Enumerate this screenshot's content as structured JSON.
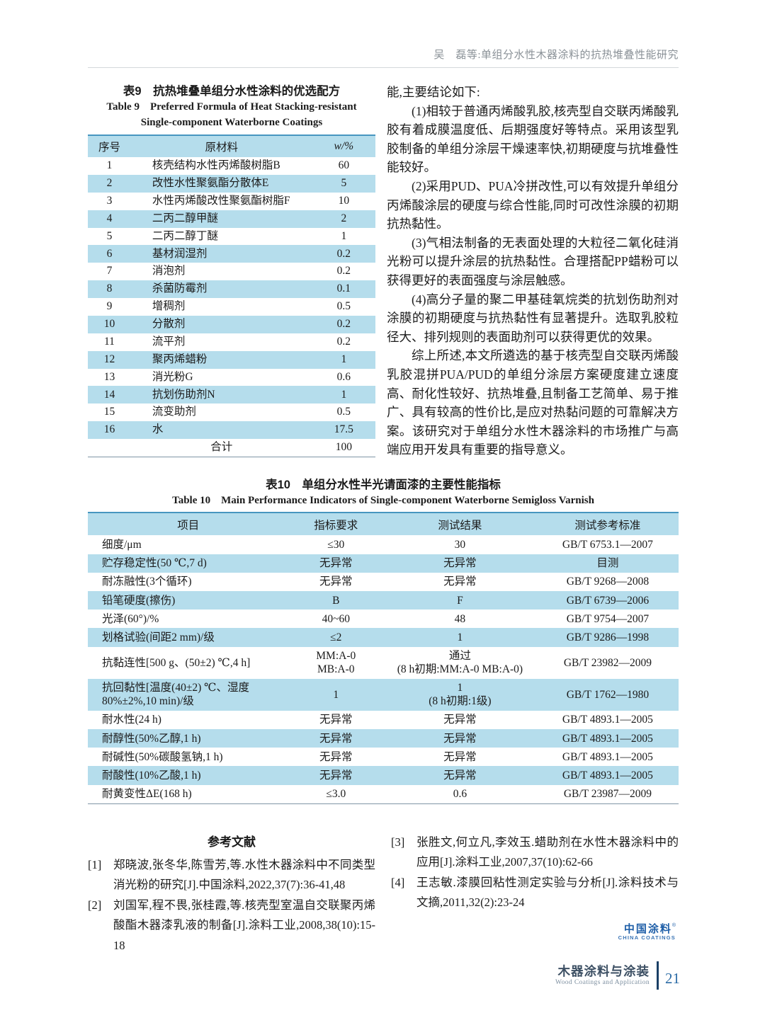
{
  "page": {
    "running_head": "吴　磊等:单组分水性木器涂料的抗热堆叠性能研究"
  },
  "table9": {
    "caption_zh": "表9　抗热堆叠单组分水性涂料的优选配方",
    "caption_en_line1": "Table 9　Preferred Formula of Heat Stacking-resistant",
    "caption_en_line2": "Single-component Waterborne Coatings",
    "columns": [
      "序号",
      "原材料",
      "w/%"
    ],
    "rows": [
      [
        "1",
        "核壳结构水性丙烯酸树脂B",
        "60"
      ],
      [
        "2",
        "改性水性聚氨酯分散体E",
        "5"
      ],
      [
        "3",
        "水性丙烯酸改性聚氨酯树脂F",
        "10"
      ],
      [
        "4",
        "二丙二醇甲醚",
        "2"
      ],
      [
        "5",
        "二丙二醇丁醚",
        "1"
      ],
      [
        "6",
        "基材润湿剂",
        "0.2"
      ],
      [
        "7",
        "消泡剂",
        "0.2"
      ],
      [
        "8",
        "杀菌防霉剂",
        "0.1"
      ],
      [
        "9",
        "增稠剂",
        "0.5"
      ],
      [
        "10",
        "分散剂",
        "0.2"
      ],
      [
        "11",
        "流平剂",
        "0.2"
      ],
      [
        "12",
        "聚丙烯蜡粉",
        "1"
      ],
      [
        "13",
        "消光粉G",
        "0.6"
      ],
      [
        "14",
        "抗划伤助剂N",
        "1"
      ],
      [
        "15",
        "流变助剂",
        "0.5"
      ],
      [
        "16",
        "水",
        "17.5"
      ],
      [
        "",
        "合计",
        "100"
      ]
    ]
  },
  "conclusions": {
    "paragraphs": [
      "能,主要结论如下:",
      "(1)相较于普通丙烯酸乳胶,核壳型自交联丙烯酸乳胶有着成膜温度低、后期强度好等特点。采用该型乳胶制备的单组分涂层干燥速率快,初期硬度与抗堆叠性能较好。",
      "(2)采用PUD、PUA冷拼改性,可以有效提升单组分丙烯酸涂层的硬度与综合性能,同时可改性涂膜的初期抗热黏性。",
      "(3)气相法制备的无表面处理的大粒径二氧化硅消光粉可以提升涂层的抗热黏性。合理搭配PP蜡粉可以获得更好的表面强度与涂层触感。",
      "(4)高分子量的聚二甲基硅氧烷类的抗划伤助剂对涂膜的初期硬度与抗热黏性有显著提升。选取乳胶粒径大、排列规则的表面助剂可以获得更优的效果。",
      "综上所述,本文所遴选的基于核壳型自交联丙烯酸乳胶混拼PUA/PUD的单组分涂层方案硬度建立速度高、耐化性较好、抗热堆叠,且制备工艺简单、易于推广、具有较高的性价比,是应对热黏问题的可靠解决方案。该研究对于单组分水性木器涂料的市场推广与高端应用开发具有重要的指导意义。"
    ]
  },
  "table10": {
    "caption_zh": "表10　单组分水性半光请面漆的主要性能指标",
    "caption_en": "Table 10　Main Performance Indicators of Single-component Waterborne Semigloss Varnish",
    "columns": [
      "项目",
      "指标要求",
      "测试结果",
      "测试参考标准"
    ],
    "rows": [
      [
        "细度/μm",
        "≤30",
        "30",
        "GB/T 6753.1—2007"
      ],
      [
        "贮存稳定性(50 ℃,7 d)",
        "无异常",
        "无异常",
        "目测"
      ],
      [
        "耐冻融性(3个循环)",
        "无异常",
        "无异常",
        "GB/T 9268—2008"
      ],
      [
        "铅笔硬度(擦伤)",
        "B",
        "F",
        "GB/T 6739—2006"
      ],
      [
        "光泽(60°)/%",
        "40~60",
        "48",
        "GB/T 9754—2007"
      ],
      [
        "划格试验(间距2 mm)/级",
        "≤2",
        "1",
        "GB/T 9286—1998"
      ],
      [
        "抗黏连性[500 g、(50±2) ℃,4 h]",
        "MM:A-0\nMB:A-0",
        "通过\n(8 h初期:MM:A-0 MB:A-0)",
        "GB/T 23982—2009"
      ],
      [
        "抗回黏性[温度(40±2) ℃、湿度\n80%±2%,10 min)/级",
        "1",
        "1\n(8 h初期:1级)",
        "GB/T 1762—1980"
      ],
      [
        "耐水性(24 h)",
        "无异常",
        "无异常",
        "GB/T 4893.1—2005"
      ],
      [
        "耐醇性(50%乙醇,1 h)",
        "无异常",
        "无异常",
        "GB/T 4893.1—2005"
      ],
      [
        "耐碱性(50%碳酸氢钠,1 h)",
        "无异常",
        "无异常",
        "GB/T 4893.1—2005"
      ],
      [
        "耐酸性(10%乙酸,1 h)",
        "无异常",
        "无异常",
        "GB/T 4893.1—2005"
      ],
      [
        "耐黄变性ΔE(168 h)",
        "≤3.0",
        "0.6",
        "GB/T 23987—2009"
      ]
    ]
  },
  "references": {
    "heading": "参考文献",
    "left": [
      {
        "label": "[1]",
        "text": "郑晓波,张冬华,陈雪芳,等.水性木器涂料中不同类型消光粉的研究[J].中国涂料,2022,37(7):36-41,48"
      },
      {
        "label": "[2]",
        "text": "刘国军,程不畏,张桂霞,等.核壳型室温自交联聚丙烯酸酯木器漆乳液的制备[J].涂料工业,2008,38(10):15-18"
      }
    ],
    "right": [
      {
        "label": "[3]",
        "text": "张胜文,何立凡,李效玉.蜡助剂在水性木器涂料中的应用[J].涂料工业,2007,37(10):62-66"
      },
      {
        "label": "[4]",
        "text": "王志敏.漆膜回粘性测定实验与分析[J].涂料技术与文摘,2011,32(2):23-24"
      }
    ]
  },
  "logo": {
    "zh": "中国涂料",
    "mark": "®",
    "en": "CHINA COATINGS"
  },
  "footer": {
    "journal_zh": "木器涂料与涂装",
    "journal_en": "Wood Coatings and Application",
    "page_number": "21"
  },
  "colors": {
    "row_stripe": "#b5ddec",
    "table_top_border": "#4796c0",
    "accent_blue": "#1f5fa8"
  }
}
